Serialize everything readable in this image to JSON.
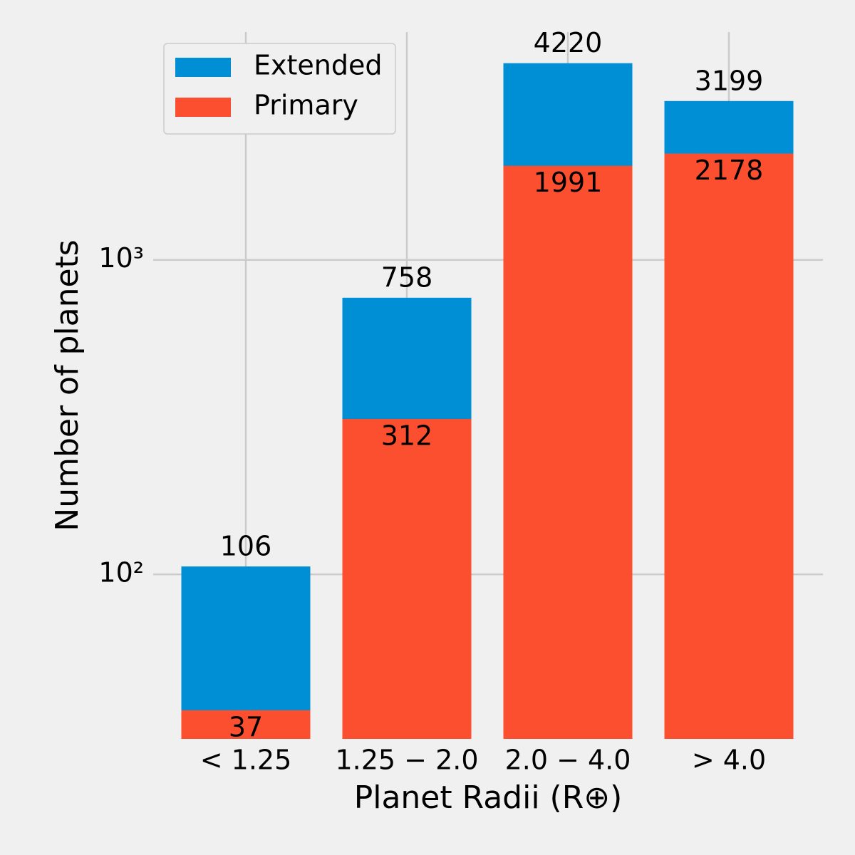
{
  "chart_data": {
    "type": "bar",
    "mode": "overlay",
    "xlabel": "Planet Radii (R⊕)",
    "ylabel": "Number of planets",
    "categories": [
      "< 1.25",
      "1.25 − 2.0",
      "2.0 − 4.0",
      "> 4.0"
    ],
    "series": [
      {
        "name": "Extended",
        "color": "#008fd5",
        "values": [
          106,
          758,
          4220,
          3199
        ]
      },
      {
        "name": "Primary",
        "color": "#fc4f30",
        "values": [
          37,
          312,
          1991,
          2178
        ]
      }
    ],
    "ylim": [
      30,
      5300
    ],
    "log_y": true,
    "yticks": [
      {
        "value": 100,
        "label": "10²"
      },
      {
        "value": 1000,
        "label": "10³"
      }
    ],
    "grid": true,
    "legend": "upper left"
  }
}
